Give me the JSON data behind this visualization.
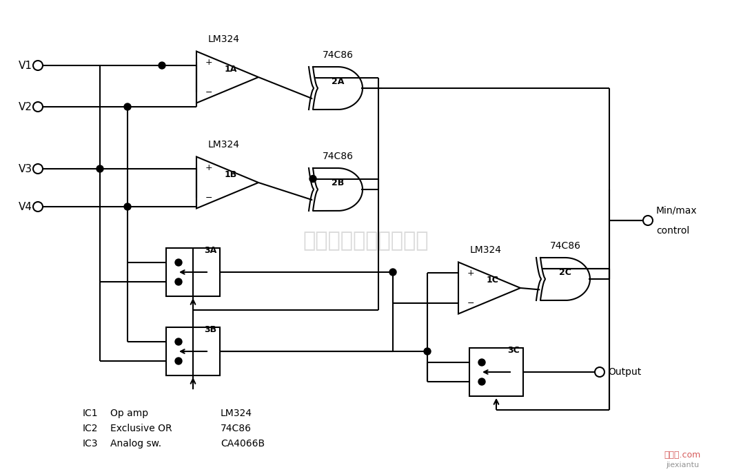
{
  "bg_color": "#ffffff",
  "figsize": [
    10.62,
    6.88
  ],
  "dpi": 100,
  "watermark": "杭州将睢科技有限公司",
  "legend_lines": [
    [
      "IC1",
      "Op amp",
      "LM324"
    ],
    [
      "IC2",
      "Exclusive OR",
      "74C86"
    ],
    [
      "IC3",
      "Analog sw.",
      "CA4066B"
    ]
  ]
}
